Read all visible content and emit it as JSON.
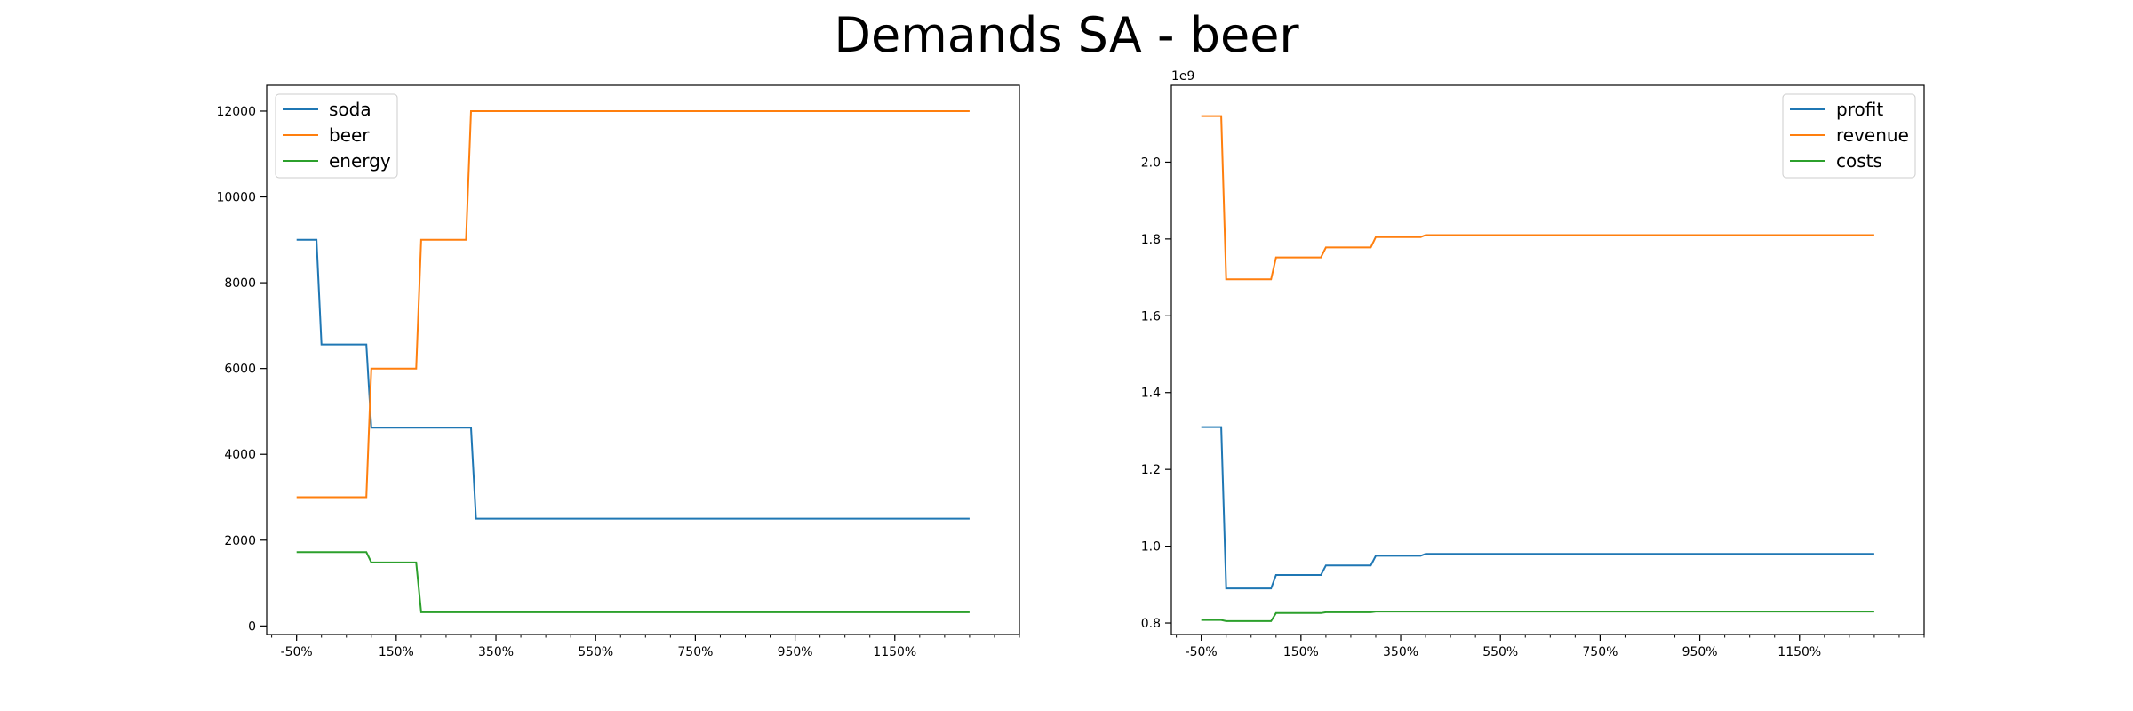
{
  "figure": {
    "title": "Demands SA - beer"
  },
  "chart_data": [
    {
      "type": "line",
      "title": "",
      "xlabel": "",
      "ylabel": "",
      "x_tick_labels": [
        "-50%",
        "150%",
        "350%",
        "550%",
        "750%",
        "950%",
        "1150%"
      ],
      "x_tick_values": [
        -50,
        150,
        350,
        550,
        750,
        950,
        1150
      ],
      "xlim": [
        -110,
        1400
      ],
      "ylim": [
        -200,
        12600
      ],
      "y_ticks": [
        0,
        2000,
        4000,
        6000,
        8000,
        10000,
        12000
      ],
      "y_tick_labels": [
        "0",
        "2000",
        "4000",
        "6000",
        "8000",
        "10000",
        "12000"
      ],
      "y_offset_label": "",
      "legend": "top-left",
      "grid": false,
      "series": [
        {
          "name": "soda",
          "color": "#1f77b4",
          "x": [
            -50,
            -10,
            0,
            90,
            100,
            300,
            310,
            1300
          ],
          "y": [
            9000,
            9000,
            6560,
            6560,
            4620,
            4620,
            2500,
            2500
          ]
        },
        {
          "name": "beer",
          "color": "#ff7f0e",
          "x": [
            -50,
            90,
            100,
            190,
            200,
            290,
            300,
            1300
          ],
          "y": [
            3000,
            3000,
            6000,
            6000,
            9000,
            9000,
            12000,
            12000
          ]
        },
        {
          "name": "energy",
          "color": "#2ca02c",
          "x": [
            -50,
            90,
            100,
            190,
            200,
            1300
          ],
          "y": [
            1720,
            1720,
            1480,
            1480,
            320,
            320
          ]
        }
      ]
    },
    {
      "type": "line",
      "title": "",
      "xlabel": "",
      "ylabel": "",
      "x_tick_labels": [
        "-50%",
        "150%",
        "350%",
        "550%",
        "750%",
        "950%",
        "1150%"
      ],
      "x_tick_values": [
        -50,
        150,
        350,
        550,
        750,
        950,
        1150
      ],
      "xlim": [
        -110,
        1400
      ],
      "ylim": [
        0.77,
        2.2
      ],
      "y_ticks": [
        0.8,
        1.0,
        1.2,
        1.4,
        1.6,
        1.8,
        2.0
      ],
      "y_tick_labels": [
        "0.8",
        "1.0",
        "1.2",
        "1.4",
        "1.6",
        "1.8",
        "2.0"
      ],
      "y_offset_label": "1e9",
      "legend": "top-right",
      "grid": false,
      "series": [
        {
          "name": "profit",
          "color": "#1f77b4",
          "x": [
            -50,
            -10,
            0,
            90,
            100,
            190,
            200,
            290,
            300,
            390,
            400,
            1300
          ],
          "y": [
            1.31,
            1.31,
            0.89,
            0.89,
            0.925,
            0.925,
            0.95,
            0.95,
            0.975,
            0.975,
            0.98,
            0.98
          ]
        },
        {
          "name": "revenue",
          "color": "#ff7f0e",
          "x": [
            -50,
            -10,
            0,
            90,
            100,
            190,
            200,
            290,
            300,
            390,
            400,
            1300
          ],
          "y": [
            2.12,
            2.12,
            1.695,
            1.695,
            1.752,
            1.752,
            1.778,
            1.778,
            1.805,
            1.805,
            1.81,
            1.81
          ]
        },
        {
          "name": "costs",
          "color": "#2ca02c",
          "x": [
            -50,
            -10,
            0,
            90,
            100,
            190,
            200,
            290,
            300,
            1300
          ],
          "y": [
            0.808,
            0.808,
            0.805,
            0.805,
            0.826,
            0.826,
            0.828,
            0.828,
            0.83,
            0.83
          ]
        }
      ]
    }
  ]
}
